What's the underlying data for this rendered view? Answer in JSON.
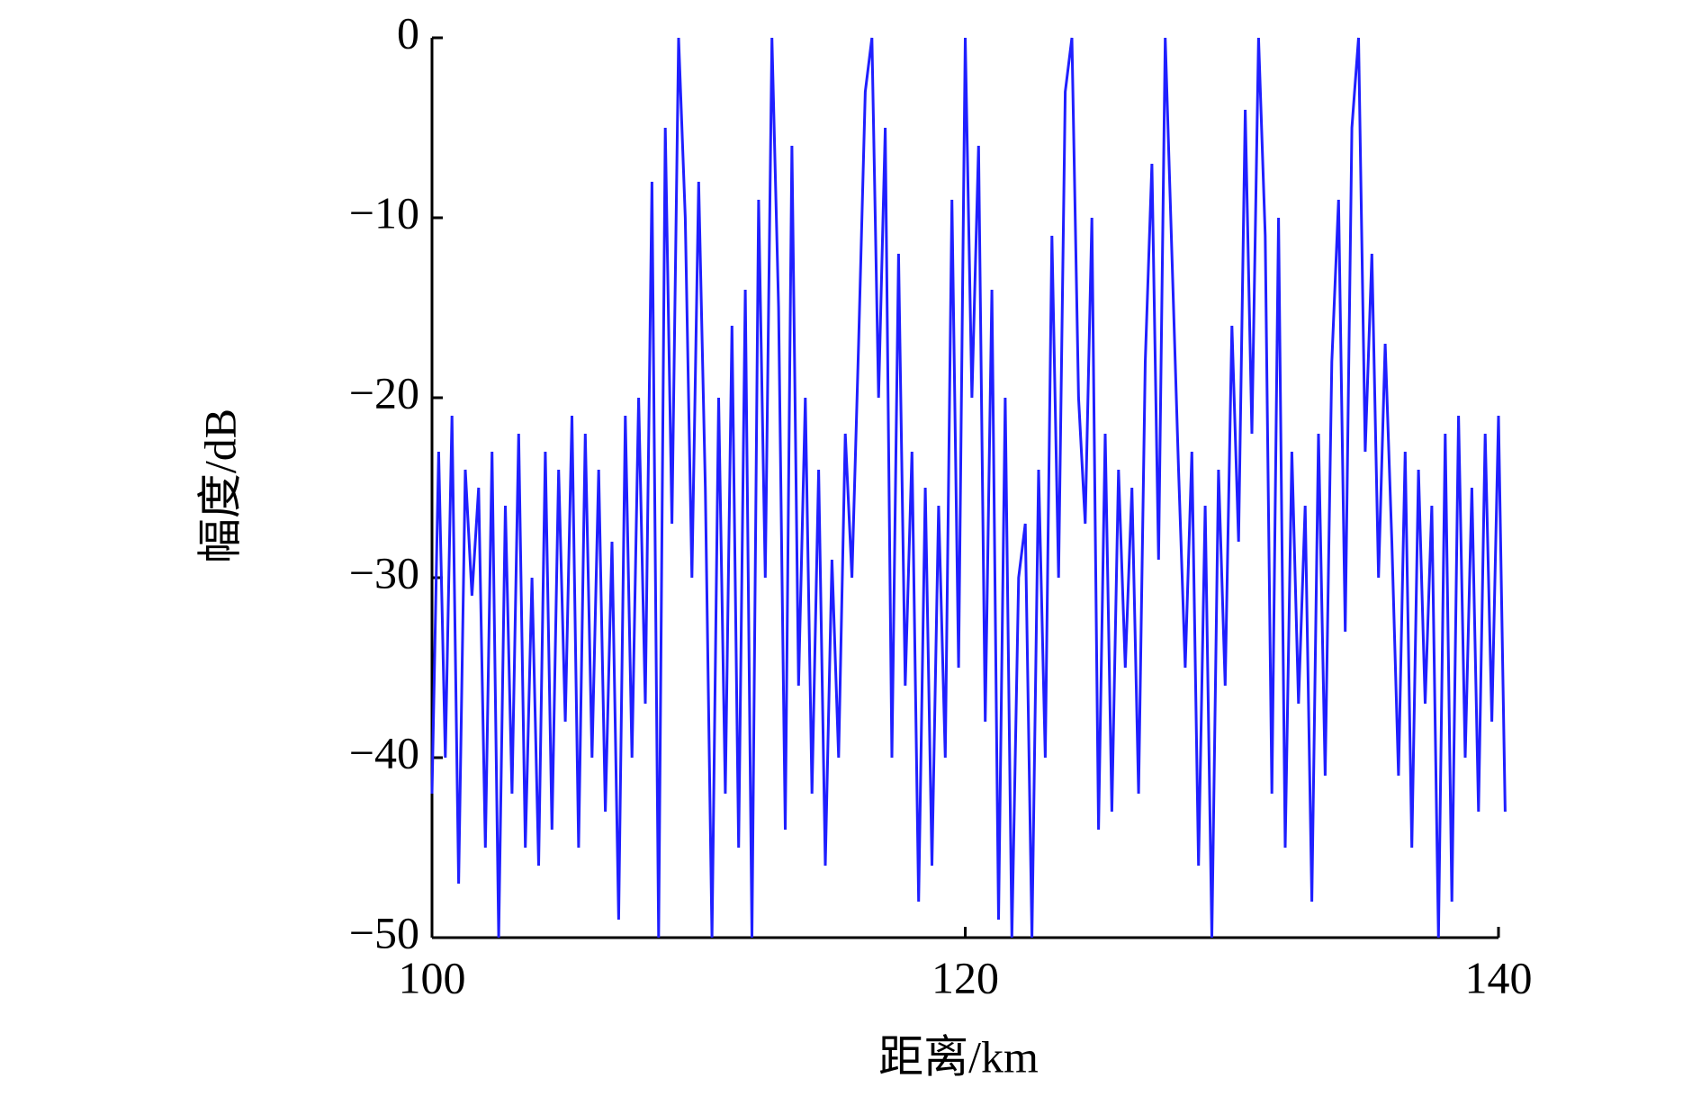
{
  "chart_data": {
    "type": "line",
    "xlabel": "距离/km",
    "ylabel": "幅度/dB",
    "x": [
      100,
      100.25,
      100.5,
      100.75,
      101,
      101.25,
      101.5,
      101.75,
      102,
      102.25,
      102.5,
      102.75,
      103,
      103.25,
      103.5,
      103.75,
      104,
      104.25,
      104.5,
      104.75,
      105,
      105.25,
      105.5,
      105.75,
      106,
      106.25,
      106.5,
      106.75,
      107,
      107.25,
      107.5,
      107.75,
      108,
      108.25,
      108.5,
      108.75,
      109,
      109.25,
      109.5,
      109.75,
      110,
      110.25,
      110.5,
      110.75,
      111,
      111.25,
      111.5,
      111.75,
      112,
      112.25,
      112.5,
      112.75,
      113,
      113.25,
      113.5,
      113.75,
      114,
      114.25,
      114.5,
      114.75,
      115,
      115.25,
      115.5,
      115.75,
      116,
      116.25,
      116.5,
      116.75,
      117,
      117.25,
      117.5,
      117.75,
      118,
      118.25,
      118.5,
      118.75,
      119,
      119.25,
      119.5,
      119.75,
      120,
      120.25,
      120.5,
      120.75,
      121,
      121.25,
      121.5,
      121.75,
      122,
      122.25,
      122.5,
      122.75,
      123,
      123.25,
      123.5,
      123.75,
      124,
      124.25,
      124.5,
      124.75,
      125,
      125.25,
      125.5,
      125.75,
      126,
      126.25,
      126.5,
      126.75,
      127,
      127.25,
      127.5,
      127.75,
      128,
      128.25,
      128.5,
      128.75,
      129,
      129.25,
      129.5,
      129.75,
      130,
      130.25,
      130.5,
      130.75,
      131,
      131.25,
      131.5,
      131.75,
      132,
      132.25,
      132.5,
      132.75,
      133,
      133.25,
      133.5,
      133.75,
      134,
      134.25,
      134.5,
      134.75,
      135,
      135.25,
      135.5,
      135.75,
      136,
      136.25,
      136.5,
      136.75,
      137,
      137.25,
      137.5,
      137.75,
      138,
      138.25,
      138.5,
      138.75,
      139,
      139.25,
      139.5,
      139.75,
      140,
      140.25
    ],
    "series": [
      {
        "color": "#1f1fff",
        "values": [
          -42,
          -23,
          -40,
          -21,
          -47,
          -24,
          -31,
          -25,
          -45,
          -23,
          -50,
          -26,
          -42,
          -22,
          -45,
          -30,
          -46,
          -23,
          -44,
          -24,
          -38,
          -21,
          -45,
          -22,
          -40,
          -24,
          -43,
          -28,
          -49,
          -21,
          -40,
          -20,
          -37,
          -8,
          -50,
          -5,
          -27,
          0,
          -10,
          -30,
          -8,
          -25,
          -50,
          -20,
          -42,
          -16,
          -45,
          -14,
          -50,
          -9,
          -30,
          0,
          -15,
          -44,
          -6,
          -36,
          -20,
          -42,
          -24,
          -46,
          -29,
          -40,
          -22,
          -30,
          -17,
          -3,
          0,
          -20,
          -5,
          -40,
          -12,
          -36,
          -23,
          -48,
          -25,
          -46,
          -26,
          -40,
          -9,
          -35,
          0,
          -20,
          -6,
          -38,
          -14,
          -49,
          -20,
          -50,
          -30,
          -27,
          -50,
          -24,
          -40,
          -11,
          -30,
          -3,
          0,
          -20,
          -27,
          -10,
          -44,
          -22,
          -43,
          -24,
          -35,
          -25,
          -42,
          -18,
          -7,
          -29,
          0,
          -12,
          -24,
          -35,
          -23,
          -46,
          -26,
          -50,
          -24,
          -36,
          -16,
          -28,
          -4,
          -22,
          0,
          -11,
          -42,
          -10,
          -45,
          -23,
          -37,
          -26,
          -48,
          -22,
          -41,
          -18,
          -9,
          -33,
          -5,
          0,
          -23,
          -12,
          -30,
          -17,
          -28,
          -41,
          -23,
          -45,
          -24,
          -37,
          -26,
          -50,
          -22,
          -48,
          -21,
          -40,
          -25,
          -43,
          -22,
          -38,
          -21,
          -43
        ]
      }
    ],
    "xlim": [
      100,
      140
    ],
    "xticks": [
      100,
      120,
      140
    ],
    "ylim": [
      -50,
      0
    ],
    "yticks": [
      0,
      {
        "value": -10,
        "label": "−10"
      },
      {
        "value": -20,
        "label": "−20"
      },
      {
        "value": -30,
        "label": "−30"
      },
      {
        "value": -40,
        "label": "−40"
      },
      {
        "value": -50,
        "label": "−50"
      }
    ]
  }
}
